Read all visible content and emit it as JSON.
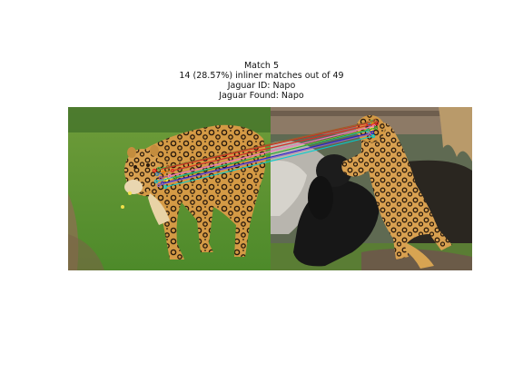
{
  "title": {
    "line1": "Match 5",
    "line2": "14 (28.57%) inliner matches out of 49",
    "line3": "Jaguar ID: Napo",
    "line4": "Jaguar Found: Napo"
  },
  "images": {
    "left_subject": "jaguar walking on grass",
    "right_subject": "jaguar standing on hind legs beside a black jaguar"
  },
  "match_line_colors": [
    "#e41a1c",
    "#377eb8",
    "#4daf4a",
    "#984ea3",
    "#ff7f00",
    "#ffff33",
    "#a65628",
    "#f781bf",
    "#17becf",
    "#1f1fd0",
    "#d62728",
    "#2ca02c",
    "#9467bd",
    "#00ced1"
  ]
}
